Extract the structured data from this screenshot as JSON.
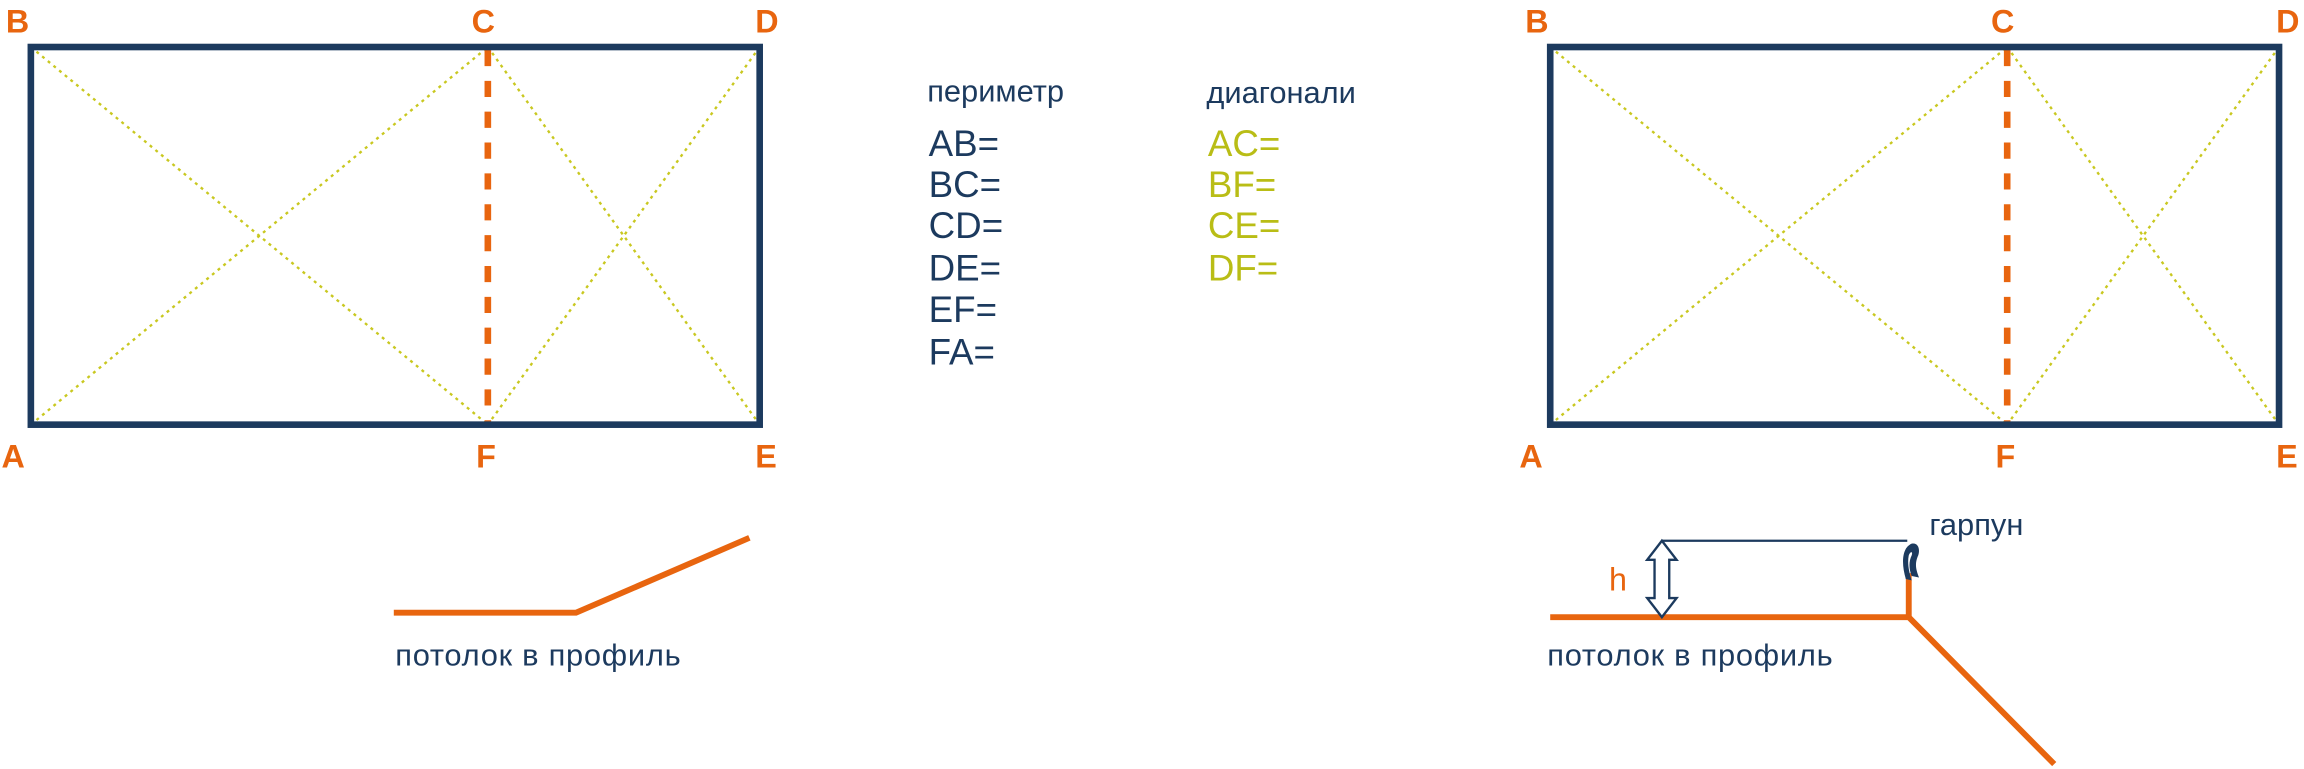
{
  "colors": {
    "navy": "#1c3a5e",
    "orange": "#e8650f",
    "olive": "#b9bd16",
    "dotted_diagonal": "#c9c820",
    "background": "#ffffff"
  },
  "left_plan": {
    "vertices": {
      "a": "A",
      "b": "B",
      "c": "C",
      "d": "D",
      "e": "E",
      "f": "F"
    }
  },
  "right_plan": {
    "vertices": {
      "a": "A",
      "b": "B",
      "c": "C",
      "d": "D",
      "e": "E",
      "f": "F"
    }
  },
  "perimeter": {
    "heading": "периметр",
    "items": [
      "AB=",
      "BC=",
      "CD=",
      "DE=",
      "EF=",
      "FA="
    ]
  },
  "diagonals": {
    "heading": "диагонали",
    "items": [
      "AC=",
      "BF=",
      "CE=",
      "DF="
    ]
  },
  "profile_left": {
    "caption": "потолок в профиль"
  },
  "profile_right": {
    "caption": "потолок в профиль",
    "height_label": "h",
    "harpoon_label": "гарпун"
  }
}
